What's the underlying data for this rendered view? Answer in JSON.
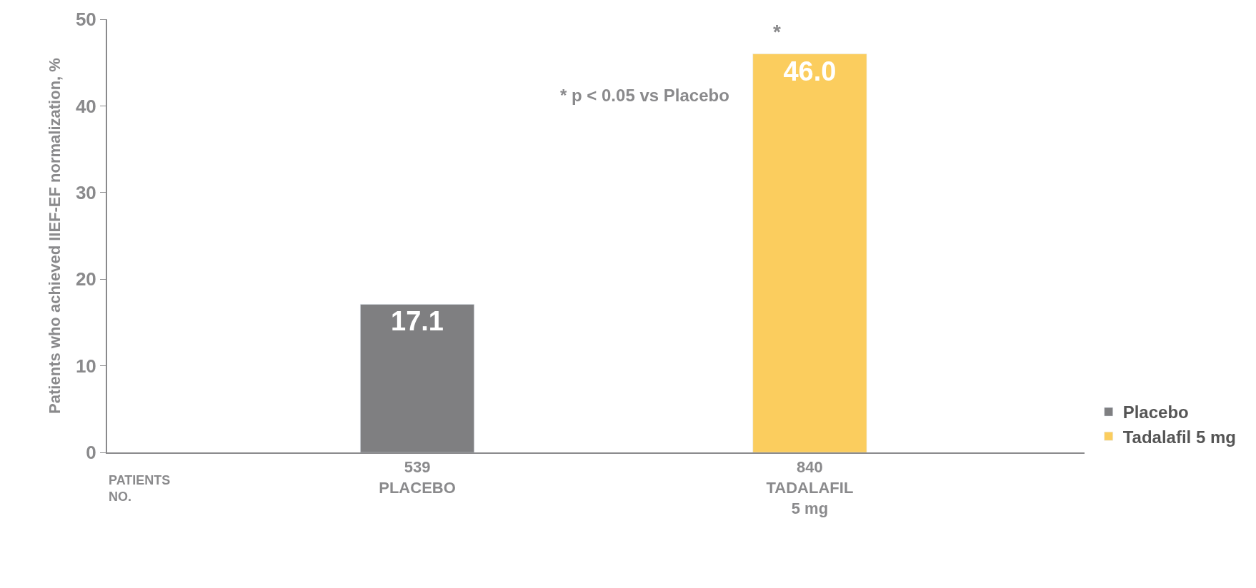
{
  "chart_data": {
    "type": "bar",
    "ylabel": "Patients who achieved IIEF-EF normalization, %",
    "categories": [
      "539\nPLACEBO",
      "840\nTADALAFIL\n5 mg"
    ],
    "series": [
      {
        "name": "Placebo",
        "color": "#7f7f81",
        "values": [
          17.1,
          null
        ],
        "value_labels": [
          "17.1",
          null
        ]
      },
      {
        "name": "Tadalafil 5 mg",
        "color": "#fbcd5e",
        "values": [
          null,
          46.0
        ],
        "value_labels": [
          null,
          "46.0"
        ]
      }
    ],
    "ylim": [
      0,
      50
    ],
    "yticks": [
      0,
      10,
      20,
      30,
      40,
      50
    ],
    "legend": "bottom right",
    "annotations": [
      "* p < 0.05 vs Placebo",
      "PATIENTS\nNO.",
      "*"
    ]
  }
}
